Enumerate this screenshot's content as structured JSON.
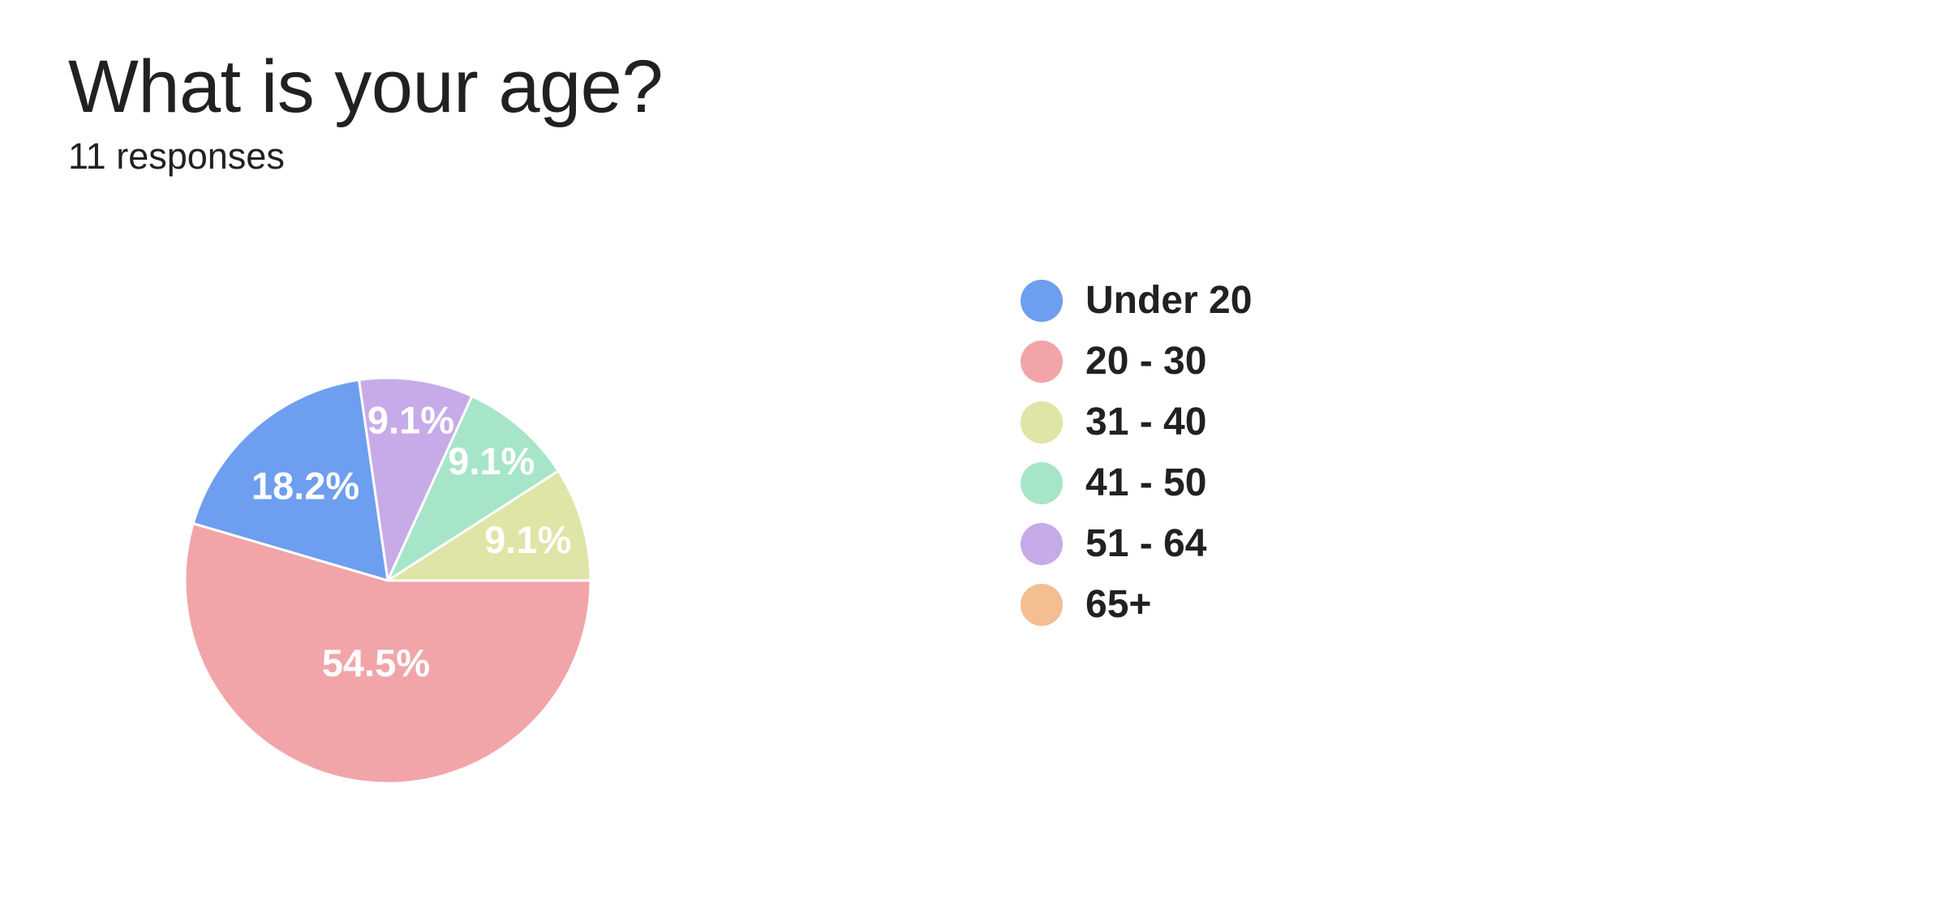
{
  "page": {
    "background": "#FFFFFF",
    "text_color": "#212121"
  },
  "header": {
    "title": "What is your age?",
    "subtitle": "11 responses"
  },
  "chart_data": {
    "type": "pie",
    "title": "What is your age?",
    "subtitle": "11 responses",
    "total_responses": 11,
    "legend_position": "right",
    "start_angle_deg": -8.18,
    "draw_order": "legend-order-counterclockwise",
    "slice_label_color": "#FFFFFF",
    "slice_border_color": "#FFFFFF",
    "categories": [
      "Under 20",
      "20 - 30",
      "31 - 40",
      "41 - 50",
      "51 - 64",
      "65+"
    ],
    "values": [
      2,
      6,
      1,
      1,
      1,
      0
    ],
    "slices": [
      {
        "label": "Under 20",
        "count": 2,
        "pct": 18.2,
        "pct_label": "18.2%",
        "color": "#6D9EEF",
        "label_r": 0.62
      },
      {
        "label": "20 - 30",
        "count": 6,
        "pct": 54.5,
        "pct_label": "54.5%",
        "color": "#F1A5A9",
        "label_r": 0.41
      },
      {
        "label": "31 - 40",
        "count": 1,
        "pct": 9.1,
        "pct_label": "9.1%",
        "color": "#DFE5A6",
        "label_r": 0.72
      },
      {
        "label": "41 - 50",
        "count": 1,
        "pct": 9.1,
        "pct_label": "9.1%",
        "color": "#A7E5C9",
        "label_r": 0.78
      },
      {
        "label": "51 - 64",
        "count": 1,
        "pct": 9.1,
        "pct_label": "9.1%",
        "color": "#C7ABE9",
        "label_r": 0.8
      },
      {
        "label": "65+",
        "count": 0,
        "pct": 0,
        "pct_label": "",
        "color": "#F3BE90",
        "label_r": 0.75
      }
    ]
  }
}
